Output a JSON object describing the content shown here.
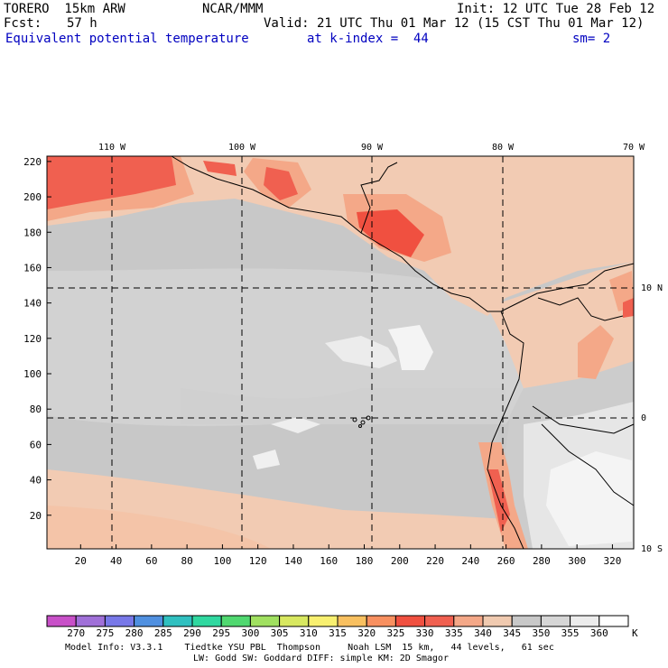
{
  "header": {
    "model": "TORERO  15km ARW",
    "center": "NCAR/MMM",
    "init": "Init: 12 UTC Tue 28 Feb 12",
    "fcst_label": "Fcst:",
    "fcst_hours": "57 h",
    "valid": "Valid: 21 UTC Thu 01 Mar 12 (15 CST Thu 01 Mar 12)",
    "field": "Equivalent potential temperature",
    "level": "at k-index =  44",
    "smoothing": "sm= 2"
  },
  "map": {
    "lon_labels": [
      "110 W",
      "100 W",
      "90 W",
      "80 W",
      "70 W"
    ],
    "lat_labels": [
      "10 N",
      "0",
      "10 S"
    ],
    "y_ticks": [
      "20",
      "40",
      "60",
      "80",
      "100",
      "120",
      "140",
      "160",
      "180",
      "200",
      "220"
    ],
    "x_ticks": [
      "20",
      "40",
      "60",
      "80",
      "100",
      "120",
      "140",
      "160",
      "180",
      "200",
      "220",
      "240",
      "260",
      "280",
      "300",
      "320"
    ]
  },
  "colorbar": {
    "labels": [
      "270",
      "275",
      "280",
      "285",
      "290",
      "295",
      "300",
      "305",
      "310",
      "315",
      "320",
      "325",
      "330",
      "335",
      "340",
      "345",
      "350",
      "355",
      "360"
    ],
    "unit": "K",
    "colors": [
      "#c850c8",
      "#a070d8",
      "#7878e8",
      "#5090e0",
      "#30c0c0",
      "#30d8a0",
      "#50d870",
      "#a0e060",
      "#d8e860",
      "#f8f070",
      "#f8c060",
      "#f89060",
      "#f05040",
      "#f06050",
      "#f4a888",
      "#f0cab0",
      "#c8c8c8",
      "#d6d6d6",
      "#ececec",
      "#ffffff"
    ]
  },
  "footer": {
    "line1": "Model Info: V3.3.1    Tiedtke YSU PBL  Thompson     Noah LSM  15 km,   44 levels,   61 sec",
    "line2": "LW: Godd SW: Goddard DIFF: simple KM: 2D Smagor"
  }
}
